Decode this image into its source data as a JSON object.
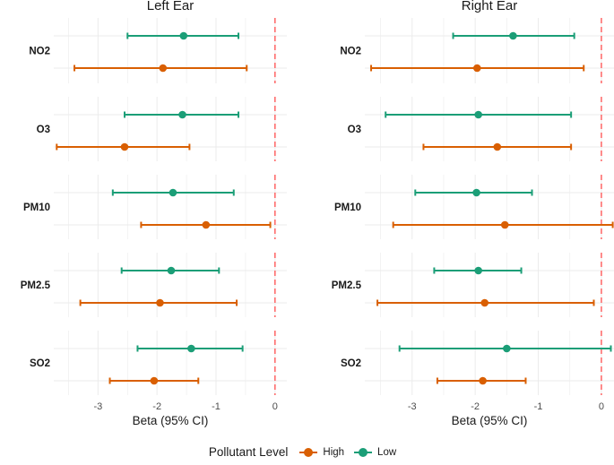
{
  "chart_data": {
    "type": "forest",
    "legend": {
      "title": "Pollutant Level",
      "placement": "bottom",
      "items": [
        {
          "label": "High",
          "color": "#D95F02"
        },
        {
          "label": "Low",
          "color": "#1B9E77"
        }
      ]
    },
    "xlabel": "Beta (95% CI)",
    "xlim": [
      -3.75,
      0.2
    ],
    "xticks": [
      -3,
      -2,
      -1,
      0
    ],
    "reference_line": 0,
    "rows": [
      "NO2",
      "O3",
      "PM10",
      "PM2.5",
      "SO2"
    ],
    "panels": [
      {
        "title": "Left Ear",
        "data": {
          "NO2": {
            "Low": [
              -1.55,
              -2.5,
              -0.62
            ],
            "High": [
              -1.9,
              -3.4,
              -0.48
            ]
          },
          "O3": {
            "Low": [
              -1.57,
              -2.55,
              -0.62
            ],
            "High": [
              -2.55,
              -3.7,
              -1.45
            ]
          },
          "PM10": {
            "Low": [
              -1.73,
              -2.75,
              -0.7
            ],
            "High": [
              -1.17,
              -2.27,
              -0.08
            ]
          },
          "PM2.5": {
            "Low": [
              -1.76,
              -2.6,
              -0.95
            ],
            "High": [
              -1.95,
              -3.3,
              -0.65
            ]
          },
          "SO2": {
            "Low": [
              -1.42,
              -2.33,
              -0.55
            ],
            "High": [
              -2.05,
              -2.8,
              -1.3
            ]
          }
        }
      },
      {
        "title": "Right Ear",
        "data": {
          "NO2": {
            "Low": [
              -1.4,
              -2.35,
              -0.43
            ],
            "High": [
              -1.97,
              -3.65,
              -0.28
            ]
          },
          "O3": {
            "Low": [
              -1.95,
              -3.42,
              -0.48
            ],
            "High": [
              -1.65,
              -2.82,
              -0.48
            ]
          },
          "PM10": {
            "Low": [
              -1.98,
              -2.95,
              -1.1
            ],
            "High": [
              -1.53,
              -3.3,
              0.18
            ]
          },
          "PM2.5": {
            "Low": [
              -1.95,
              -2.65,
              -1.27
            ],
            "High": [
              -1.85,
              -3.55,
              -0.12
            ]
          },
          "SO2": {
            "Low": [
              -1.5,
              -3.2,
              0.15
            ],
            "High": [
              -1.88,
              -2.6,
              -1.2
            ]
          }
        }
      }
    ]
  }
}
